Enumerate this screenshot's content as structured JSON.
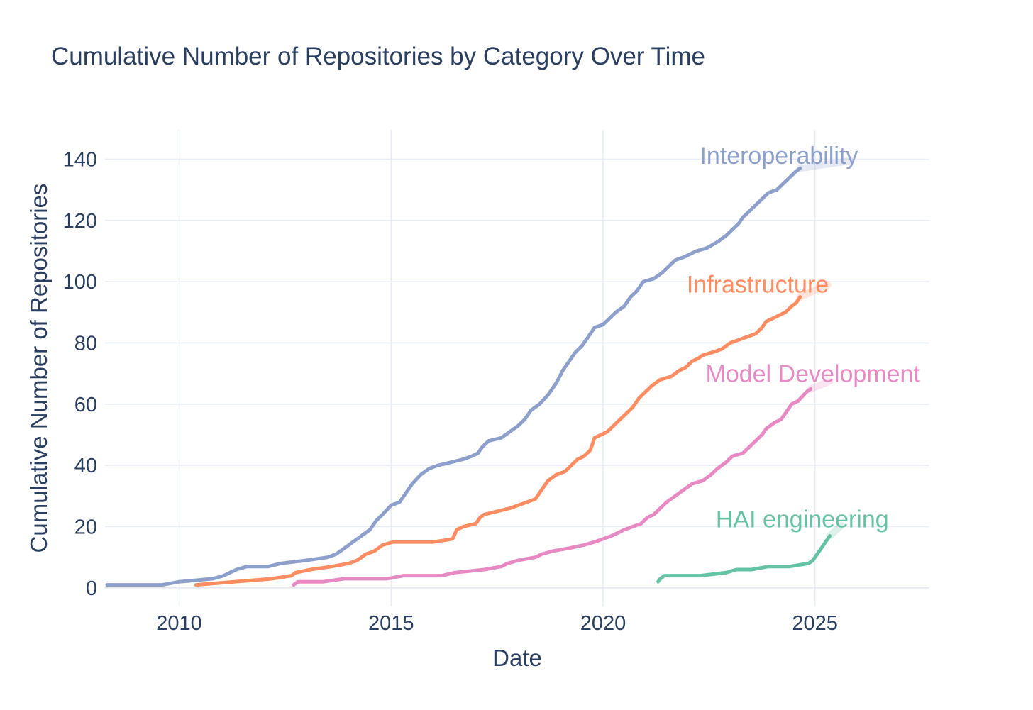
{
  "page": {
    "background": "#ffffff",
    "text_color": "#2a3f5f",
    "grid_color": "#e8edf6",
    "zeroline_color": "#e2e5f2"
  },
  "chart_data": {
    "type": "line",
    "title": "Cumulative Number of Repositories by Category Over Time",
    "xlabel": "Date",
    "ylabel": "Cumulative Number of Repositories",
    "x_ticks": [
      2010,
      2015,
      2020,
      2025
    ],
    "y_ticks": [
      0,
      20,
      40,
      60,
      80,
      100,
      120,
      140
    ],
    "xlim": [
      2008.25,
      2027.7
    ],
    "ylim": [
      -6.05,
      149.6
    ],
    "grid": true,
    "legend_position": "line-end-labels",
    "series": [
      {
        "name": "Interoperability",
        "color": "#8da0cb",
        "label_pos": [
          2024.15,
          141.3
        ],
        "leader": [
          [
            2024.65,
            137
          ],
          [
            2025.85,
            139.5
          ]
        ],
        "points": [
          [
            2008.3,
            1
          ],
          [
            2009.6,
            1
          ],
          [
            2010.0,
            2
          ],
          [
            2010.8,
            3
          ],
          [
            2011.05,
            4
          ],
          [
            2011.2,
            5
          ],
          [
            2011.35,
            6
          ],
          [
            2011.6,
            7
          ],
          [
            2012.1,
            7
          ],
          [
            2012.4,
            8
          ],
          [
            2013.0,
            9
          ],
          [
            2013.5,
            10
          ],
          [
            2013.7,
            11
          ],
          [
            2013.9,
            13
          ],
          [
            2014.1,
            15
          ],
          [
            2014.3,
            17
          ],
          [
            2014.5,
            19
          ],
          [
            2014.65,
            22
          ],
          [
            2014.8,
            24
          ],
          [
            2015.0,
            27
          ],
          [
            2015.2,
            28
          ],
          [
            2015.35,
            31
          ],
          [
            2015.5,
            34
          ],
          [
            2015.7,
            37
          ],
          [
            2015.9,
            39
          ],
          [
            2016.1,
            40
          ],
          [
            2016.4,
            41
          ],
          [
            2016.7,
            42
          ],
          [
            2016.9,
            43
          ],
          [
            2017.05,
            44
          ],
          [
            2017.15,
            46
          ],
          [
            2017.3,
            48
          ],
          [
            2017.6,
            49
          ],
          [
            2017.8,
            51
          ],
          [
            2018.0,
            53
          ],
          [
            2018.15,
            55
          ],
          [
            2018.3,
            58
          ],
          [
            2018.5,
            60
          ],
          [
            2018.7,
            63
          ],
          [
            2018.9,
            67
          ],
          [
            2019.05,
            71
          ],
          [
            2019.2,
            74
          ],
          [
            2019.35,
            77
          ],
          [
            2019.5,
            79
          ],
          [
            2019.65,
            82
          ],
          [
            2019.8,
            85
          ],
          [
            2020.0,
            86
          ],
          [
            2020.15,
            88
          ],
          [
            2020.3,
            90
          ],
          [
            2020.5,
            92
          ],
          [
            2020.65,
            95
          ],
          [
            2020.8,
            97
          ],
          [
            2020.95,
            100
          ],
          [
            2021.2,
            101
          ],
          [
            2021.4,
            103
          ],
          [
            2021.55,
            105
          ],
          [
            2021.7,
            107
          ],
          [
            2021.9,
            108
          ],
          [
            2022.2,
            110
          ],
          [
            2022.45,
            111
          ],
          [
            2022.7,
            113
          ],
          [
            2022.9,
            115
          ],
          [
            2023.05,
            117
          ],
          [
            2023.2,
            119
          ],
          [
            2023.3,
            121
          ],
          [
            2023.45,
            123
          ],
          [
            2023.6,
            125
          ],
          [
            2023.75,
            127
          ],
          [
            2023.9,
            129
          ],
          [
            2024.1,
            130
          ],
          [
            2024.25,
            132
          ],
          [
            2024.4,
            134
          ],
          [
            2024.55,
            136
          ],
          [
            2024.65,
            137
          ]
        ]
      },
      {
        "name": "Infrastructure",
        "color": "#fc8d62",
        "label_pos": [
          2023.65,
          99.2
        ],
        "leader": [
          [
            2024.65,
            95
          ],
          [
            2025.3,
            99
          ]
        ],
        "points": [
          [
            2010.4,
            1
          ],
          [
            2011.3,
            2
          ],
          [
            2012.2,
            3
          ],
          [
            2012.65,
            4
          ],
          [
            2012.75,
            5
          ],
          [
            2013.1,
            6
          ],
          [
            2013.6,
            7
          ],
          [
            2014.0,
            8
          ],
          [
            2014.2,
            9
          ],
          [
            2014.4,
            11
          ],
          [
            2014.6,
            12
          ],
          [
            2014.8,
            14
          ],
          [
            2015.05,
            15
          ],
          [
            2016.0,
            15
          ],
          [
            2016.45,
            16
          ],
          [
            2016.55,
            19
          ],
          [
            2016.7,
            20
          ],
          [
            2017.0,
            21
          ],
          [
            2017.1,
            23
          ],
          [
            2017.2,
            24
          ],
          [
            2017.5,
            25
          ],
          [
            2017.8,
            26
          ],
          [
            2018.0,
            27
          ],
          [
            2018.2,
            28
          ],
          [
            2018.4,
            29
          ],
          [
            2018.5,
            31
          ],
          [
            2018.6,
            33
          ],
          [
            2018.7,
            35
          ],
          [
            2018.9,
            37
          ],
          [
            2019.1,
            38
          ],
          [
            2019.25,
            40
          ],
          [
            2019.4,
            42
          ],
          [
            2019.55,
            43
          ],
          [
            2019.7,
            45
          ],
          [
            2019.8,
            49
          ],
          [
            2019.95,
            50
          ],
          [
            2020.1,
            51
          ],
          [
            2020.25,
            53
          ],
          [
            2020.4,
            55
          ],
          [
            2020.55,
            57
          ],
          [
            2020.7,
            59
          ],
          [
            2020.85,
            62
          ],
          [
            2021.0,
            64
          ],
          [
            2021.15,
            66
          ],
          [
            2021.35,
            68
          ],
          [
            2021.6,
            69
          ],
          [
            2021.8,
            71
          ],
          [
            2021.95,
            72
          ],
          [
            2022.1,
            74
          ],
          [
            2022.25,
            75
          ],
          [
            2022.35,
            76
          ],
          [
            2022.6,
            77
          ],
          [
            2022.8,
            78
          ],
          [
            2023.0,
            80
          ],
          [
            2023.2,
            81
          ],
          [
            2023.4,
            82
          ],
          [
            2023.6,
            83
          ],
          [
            2023.75,
            85
          ],
          [
            2023.85,
            87
          ],
          [
            2024.0,
            88
          ],
          [
            2024.15,
            89
          ],
          [
            2024.3,
            90
          ],
          [
            2024.45,
            92
          ],
          [
            2024.55,
            93
          ],
          [
            2024.65,
            95
          ]
        ]
      },
      {
        "name": "Model Development",
        "color": "#e78ac3",
        "label_pos": [
          2024.95,
          70.0
        ],
        "leader": [
          [
            2024.9,
            65
          ],
          [
            2025.35,
            67.5
          ]
        ],
        "points": [
          [
            2012.7,
            1
          ],
          [
            2012.8,
            2
          ],
          [
            2013.4,
            2
          ],
          [
            2013.9,
            3
          ],
          [
            2014.9,
            3
          ],
          [
            2015.3,
            4
          ],
          [
            2016.2,
            4
          ],
          [
            2016.5,
            5
          ],
          [
            2017.2,
            6
          ],
          [
            2017.6,
            7
          ],
          [
            2017.75,
            8
          ],
          [
            2018.0,
            9
          ],
          [
            2018.4,
            10
          ],
          [
            2018.55,
            11
          ],
          [
            2018.8,
            12
          ],
          [
            2019.2,
            13
          ],
          [
            2019.55,
            14
          ],
          [
            2019.8,
            15
          ],
          [
            2020.0,
            16
          ],
          [
            2020.2,
            17
          ],
          [
            2020.35,
            18
          ],
          [
            2020.5,
            19
          ],
          [
            2020.7,
            20
          ],
          [
            2020.9,
            21
          ],
          [
            2021.05,
            23
          ],
          [
            2021.2,
            24
          ],
          [
            2021.35,
            26
          ],
          [
            2021.5,
            28
          ],
          [
            2021.7,
            30
          ],
          [
            2021.9,
            32
          ],
          [
            2022.1,
            34
          ],
          [
            2022.35,
            35
          ],
          [
            2022.55,
            37
          ],
          [
            2022.7,
            39
          ],
          [
            2022.9,
            41
          ],
          [
            2023.05,
            43
          ],
          [
            2023.3,
            44
          ],
          [
            2023.45,
            46
          ],
          [
            2023.6,
            48
          ],
          [
            2023.75,
            50
          ],
          [
            2023.85,
            52
          ],
          [
            2024.05,
            54
          ],
          [
            2024.2,
            55
          ],
          [
            2024.35,
            58
          ],
          [
            2024.45,
            60
          ],
          [
            2024.6,
            61
          ],
          [
            2024.8,
            64
          ],
          [
            2024.9,
            65
          ]
        ]
      },
      {
        "name": "HAI engineering",
        "color": "#66c2a5",
        "label_pos": [
          2024.7,
          22.5
        ],
        "leader": [
          [
            2025.35,
            17
          ],
          [
            2025.62,
            20.5
          ]
        ],
        "points": [
          [
            2021.3,
            2
          ],
          [
            2021.35,
            3
          ],
          [
            2021.45,
            4
          ],
          [
            2022.3,
            4
          ],
          [
            2022.9,
            5
          ],
          [
            2023.15,
            6
          ],
          [
            2023.5,
            6
          ],
          [
            2023.9,
            7
          ],
          [
            2024.4,
            7
          ],
          [
            2024.85,
            8
          ],
          [
            2024.95,
            9
          ],
          [
            2025.05,
            11
          ],
          [
            2025.15,
            13
          ],
          [
            2025.25,
            15
          ],
          [
            2025.3,
            16
          ],
          [
            2025.35,
            17
          ]
        ]
      }
    ]
  }
}
